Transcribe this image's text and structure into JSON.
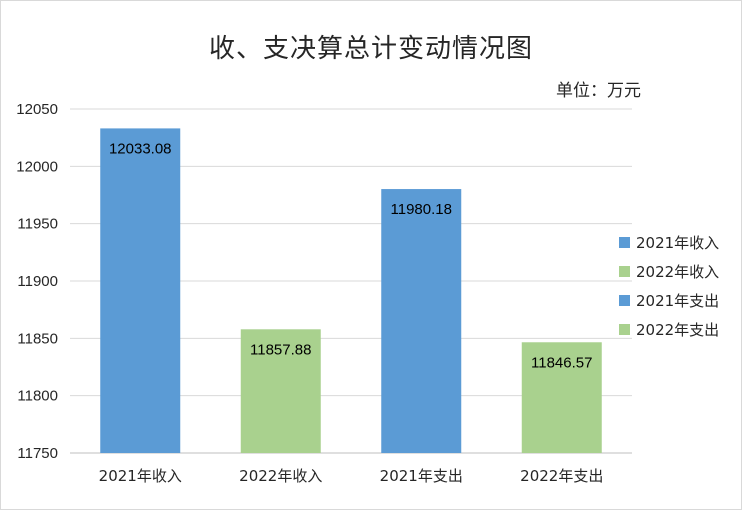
{
  "chart_data": {
    "type": "bar",
    "title": "收、支决算总计变动情况图",
    "unit_label": "单位：万元",
    "categories": [
      "2021年收入",
      "2022年收入",
      "2021年支出",
      "2022年支出"
    ],
    "values": [
      12033.08,
      11857.88,
      11980.18,
      11846.57
    ],
    "data_labels": [
      "12033.08",
      "11857.88",
      "11980.18",
      "11846.57"
    ],
    "bar_colors": [
      "#5b9bd5",
      "#a9d18e",
      "#5b9bd5",
      "#a9d18e"
    ],
    "ylim": [
      11750,
      12050
    ],
    "yticks": [
      11750,
      11800,
      11850,
      11900,
      11950,
      12000,
      12050
    ],
    "grid": true,
    "legend_position": "right",
    "legend": [
      {
        "label": "2021年收入",
        "color": "#5b9bd5"
      },
      {
        "label": "2022年收入",
        "color": "#a9d18e"
      },
      {
        "label": "2021年支出",
        "color": "#5b9bd5"
      },
      {
        "label": "2022年支出",
        "color": "#a9d18e"
      }
    ],
    "gridline_color": "#d9d9d9",
    "axis_color": "#bfbfbf"
  }
}
